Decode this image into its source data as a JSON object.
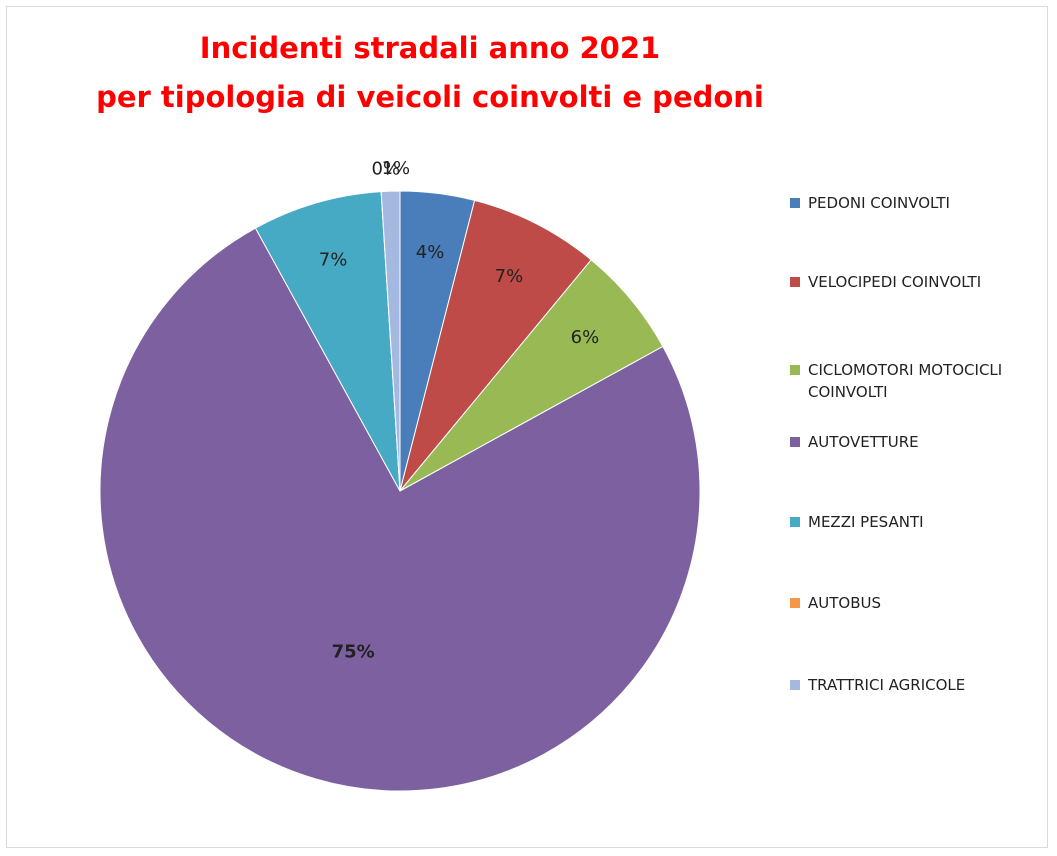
{
  "chart_data": {
    "type": "pie",
    "title": [
      "Incidenti stradali anno 2021",
      "per tipologia di veicoli coinvolti e pedoni"
    ],
    "categories": [
      "PEDONI COINVOLTI",
      "VELOCIPEDI COINVOLTI",
      "CICLOMOTORI MOTOCICLI COINVOLTI",
      "AUTOVETTURE",
      "MEZZI PESANTI",
      "AUTOBUS",
      "TRATTRICI AGRICOLE"
    ],
    "values": [
      4,
      7,
      6,
      75,
      7,
      0,
      1
    ],
    "value_labels": [
      "4%",
      "7%",
      "6%",
      "75%",
      "7%",
      "0%",
      "1%"
    ],
    "colors": [
      "#4a7ebb",
      "#be4b48",
      "#98b954",
      "#7d60a0",
      "#46aac5",
      "#f79646",
      "#a5b9e0"
    ],
    "legend": "right"
  }
}
